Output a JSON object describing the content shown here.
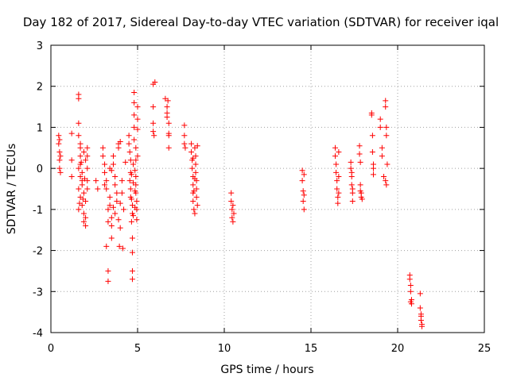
{
  "chart_data": {
    "type": "scatter",
    "title": "Day 182 of 2017, Sidereal Day-to-day VTEC variation (SDTVAR) for receiver iqal",
    "xlabel": "GPS time / hours",
    "ylabel": "SDTVAR / TECUs",
    "xlim": [
      0,
      25
    ],
    "ylim": [
      -4,
      3
    ],
    "xticks": [
      0,
      5,
      10,
      15,
      20,
      25
    ],
    "yticks": [
      -4,
      -3,
      -2,
      -1,
      0,
      1,
      2,
      3
    ],
    "xtick_labels": [
      "0",
      "5",
      "10",
      "15",
      "20",
      "25"
    ],
    "ytick_labels": [
      "-4",
      "-3",
      "-2",
      "-1",
      "0",
      "1",
      "2",
      "3"
    ],
    "grid": true,
    "marker": "+",
    "color": "#ff0000",
    "series": [
      {
        "name": "SDTVAR",
        "points": [
          [
            0.45,
            0.8
          ],
          [
            0.45,
            0.6
          ],
          [
            0.5,
            0.4
          ],
          [
            0.5,
            0.2
          ],
          [
            0.5,
            0.0
          ],
          [
            0.55,
            -0.1
          ],
          [
            0.55,
            0.3
          ],
          [
            0.5,
            0.7
          ],
          [
            1.2,
            0.85
          ],
          [
            1.2,
            0.2
          ],
          [
            1.2,
            -0.2
          ],
          [
            1.6,
            1.8
          ],
          [
            1.6,
            1.7
          ],
          [
            1.6,
            1.1
          ],
          [
            1.6,
            0.8
          ],
          [
            1.7,
            0.6
          ],
          [
            1.7,
            0.5
          ],
          [
            1.7,
            0.3
          ],
          [
            1.7,
            0.1
          ],
          [
            1.8,
            -0.1
          ],
          [
            1.8,
            -0.3
          ],
          [
            1.6,
            -0.5
          ],
          [
            1.7,
            -0.7
          ],
          [
            1.8,
            -0.9
          ],
          [
            1.6,
            -1.0
          ],
          [
            1.9,
            -1.1
          ],
          [
            1.9,
            -1.3
          ],
          [
            2.0,
            -1.4
          ],
          [
            2.0,
            -1.2
          ],
          [
            1.9,
            0.4
          ],
          [
            2.0,
            0.2
          ],
          [
            1.6,
            0.0
          ],
          [
            1.7,
            -0.2
          ],
          [
            1.8,
            -0.4
          ],
          [
            1.9,
            -0.6
          ],
          [
            2.0,
            -0.8
          ],
          [
            2.1,
            -0.5
          ],
          [
            2.1,
            -0.3
          ],
          [
            2.1,
            0.0
          ],
          [
            2.1,
            0.3
          ],
          [
            2.1,
            0.5
          ],
          [
            1.75,
            0.15
          ],
          [
            1.85,
            -0.75
          ],
          [
            1.95,
            -0.25
          ],
          [
            1.65,
            -0.85
          ],
          [
            2.6,
            -0.3
          ],
          [
            2.7,
            -0.5
          ],
          [
            3.0,
            0.5
          ],
          [
            3.0,
            0.3
          ],
          [
            3.1,
            0.1
          ],
          [
            3.1,
            -0.1
          ],
          [
            3.2,
            -0.3
          ],
          [
            3.2,
            -0.5
          ],
          [
            3.3,
            -1.0
          ],
          [
            3.3,
            -1.3
          ],
          [
            3.2,
            -1.9
          ],
          [
            3.3,
            -2.5
          ],
          [
            3.3,
            -2.75
          ],
          [
            3.4,
            -0.7
          ],
          [
            3.4,
            -0.9
          ],
          [
            3.5,
            -1.2
          ],
          [
            3.5,
            -1.4
          ],
          [
            3.5,
            -1.7
          ],
          [
            3.6,
            0.3
          ],
          [
            3.6,
            0.1
          ],
          [
            3.7,
            -0.2
          ],
          [
            3.7,
            -0.4
          ],
          [
            3.8,
            -0.6
          ],
          [
            3.8,
            -0.8
          ],
          [
            3.9,
            0.5
          ],
          [
            3.9,
            0.6
          ],
          [
            3.1,
            -0.4
          ],
          [
            3.4,
            0.0
          ],
          [
            3.5,
            -0.05
          ],
          [
            3.6,
            -0.95
          ],
          [
            3.7,
            -1.1
          ],
          [
            3.9,
            -1.25
          ],
          [
            4.0,
            -1.45
          ],
          [
            4.0,
            -0.85
          ],
          [
            4.1,
            -0.3
          ],
          [
            4.1,
            -0.6
          ],
          [
            4.0,
            0.65
          ],
          [
            4.2,
            -1.0
          ],
          [
            3.95,
            -1.9
          ],
          [
            4.15,
            -1.95
          ],
          [
            4.3,
            0.15
          ],
          [
            4.5,
            0.8
          ],
          [
            4.5,
            0.6
          ],
          [
            4.55,
            0.4
          ],
          [
            4.6,
            0.2
          ],
          [
            4.6,
            -0.1
          ],
          [
            4.55,
            -0.3
          ],
          [
            4.6,
            -0.5
          ],
          [
            4.6,
            -0.7
          ],
          [
            4.7,
            -0.9
          ],
          [
            4.7,
            -1.1
          ],
          [
            4.65,
            -1.3
          ],
          [
            4.7,
            -1.7
          ],
          [
            4.7,
            -2.05
          ],
          [
            4.7,
            -2.5
          ],
          [
            4.7,
            -2.7
          ],
          [
            4.8,
            1.85
          ],
          [
            4.8,
            1.6
          ],
          [
            4.8,
            1.3
          ],
          [
            4.8,
            1.0
          ],
          [
            4.8,
            0.7
          ],
          [
            4.9,
            0.5
          ],
          [
            4.9,
            0.2
          ],
          [
            4.9,
            -0.2
          ],
          [
            4.9,
            -0.4
          ],
          [
            4.9,
            -0.6
          ],
          [
            4.95,
            -0.8
          ],
          [
            4.95,
            -1.0
          ],
          [
            4.95,
            -1.25
          ],
          [
            5.0,
            1.5
          ],
          [
            5.0,
            1.2
          ],
          [
            5.0,
            0.95
          ],
          [
            5.0,
            0.3
          ],
          [
            4.75,
            0.1
          ],
          [
            4.85,
            -0.05
          ],
          [
            4.65,
            -0.15
          ],
          [
            4.75,
            -0.35
          ],
          [
            4.85,
            -0.55
          ],
          [
            4.65,
            -0.75
          ],
          [
            4.85,
            -0.95
          ],
          [
            4.75,
            -1.15
          ],
          [
            5.9,
            2.05
          ],
          [
            5.9,
            1.5
          ],
          [
            5.9,
            1.1
          ],
          [
            5.9,
            0.9
          ],
          [
            5.95,
            0.8
          ],
          [
            6.0,
            2.1
          ],
          [
            6.6,
            1.7
          ],
          [
            6.7,
            1.5
          ],
          [
            6.7,
            1.35
          ],
          [
            6.7,
            1.25
          ],
          [
            6.8,
            1.1
          ],
          [
            6.8,
            0.85
          ],
          [
            6.8,
            0.8
          ],
          [
            6.8,
            0.5
          ],
          [
            6.75,
            1.65
          ],
          [
            7.7,
            1.05
          ],
          [
            7.7,
            0.8
          ],
          [
            7.7,
            0.6
          ],
          [
            7.75,
            0.5
          ],
          [
            8.1,
            0.6
          ],
          [
            8.1,
            0.4
          ],
          [
            8.15,
            0.2
          ],
          [
            8.15,
            0.0
          ],
          [
            8.2,
            -0.2
          ],
          [
            8.2,
            -0.4
          ],
          [
            8.2,
            -0.6
          ],
          [
            8.2,
            -0.8
          ],
          [
            8.25,
            -1.0
          ],
          [
            8.3,
            -1.1
          ],
          [
            8.3,
            0.5
          ],
          [
            8.35,
            0.3
          ],
          [
            8.35,
            0.1
          ],
          [
            8.35,
            -0.1
          ],
          [
            8.4,
            -0.3
          ],
          [
            8.4,
            -0.5
          ],
          [
            8.4,
            -0.7
          ],
          [
            8.45,
            -0.9
          ],
          [
            8.45,
            0.55
          ],
          [
            8.2,
            0.25
          ],
          [
            8.3,
            -0.25
          ],
          [
            8.25,
            -0.55
          ],
          [
            10.4,
            -0.6
          ],
          [
            10.4,
            -0.8
          ],
          [
            10.45,
            -1.0
          ],
          [
            10.45,
            -1.2
          ],
          [
            10.5,
            -1.3
          ],
          [
            10.5,
            -0.9
          ],
          [
            10.55,
            -1.1
          ],
          [
            14.5,
            -0.05
          ],
          [
            14.5,
            -0.3
          ],
          [
            14.55,
            -0.55
          ],
          [
            14.55,
            -0.8
          ],
          [
            14.6,
            -1.0
          ],
          [
            14.6,
            -0.15
          ],
          [
            14.6,
            -0.65
          ],
          [
            16.4,
            0.5
          ],
          [
            16.4,
            0.3
          ],
          [
            16.45,
            0.1
          ],
          [
            16.45,
            -0.1
          ],
          [
            16.5,
            -0.3
          ],
          [
            16.5,
            -0.5
          ],
          [
            16.55,
            -0.7
          ],
          [
            16.55,
            -0.85
          ],
          [
            16.6,
            -0.6
          ],
          [
            16.6,
            0.4
          ],
          [
            16.6,
            -0.2
          ],
          [
            17.3,
            0.15
          ],
          [
            17.3,
            0.0
          ],
          [
            17.35,
            -0.2
          ],
          [
            17.35,
            -0.4
          ],
          [
            17.4,
            -0.6
          ],
          [
            17.4,
            -0.8
          ],
          [
            17.35,
            -0.1
          ],
          [
            17.4,
            -0.5
          ],
          [
            17.8,
            0.55
          ],
          [
            17.8,
            0.35
          ],
          [
            17.85,
            0.15
          ],
          [
            17.85,
            -0.4
          ],
          [
            17.9,
            -0.6
          ],
          [
            17.9,
            -0.7
          ],
          [
            17.95,
            -0.75
          ],
          [
            17.85,
            -0.55
          ],
          [
            18.5,
            1.35
          ],
          [
            18.5,
            1.3
          ],
          [
            18.55,
            0.8
          ],
          [
            18.55,
            0.4
          ],
          [
            18.6,
            0.1
          ],
          [
            18.6,
            0.0
          ],
          [
            18.6,
            -0.15
          ],
          [
            19.0,
            1.2
          ],
          [
            19.0,
            1.0
          ],
          [
            19.1,
            0.5
          ],
          [
            19.1,
            0.3
          ],
          [
            19.2,
            -0.2
          ],
          [
            19.3,
            1.65
          ],
          [
            19.3,
            1.5
          ],
          [
            19.35,
            1.0
          ],
          [
            19.35,
            0.8
          ],
          [
            19.4,
            0.1
          ],
          [
            19.3,
            -0.3
          ],
          [
            19.35,
            -0.4
          ],
          [
            20.7,
            -2.6
          ],
          [
            20.7,
            -2.7
          ],
          [
            20.75,
            -2.85
          ],
          [
            20.75,
            -3.0
          ],
          [
            20.8,
            -3.2
          ],
          [
            20.8,
            -3.3
          ],
          [
            20.75,
            -3.25
          ],
          [
            21.3,
            -3.05
          ],
          [
            21.3,
            -3.4
          ],
          [
            21.35,
            -3.55
          ],
          [
            21.35,
            -3.7
          ],
          [
            21.4,
            -3.8
          ],
          [
            21.4,
            -3.85
          ],
          [
            21.35,
            -3.6
          ]
        ]
      }
    ]
  }
}
